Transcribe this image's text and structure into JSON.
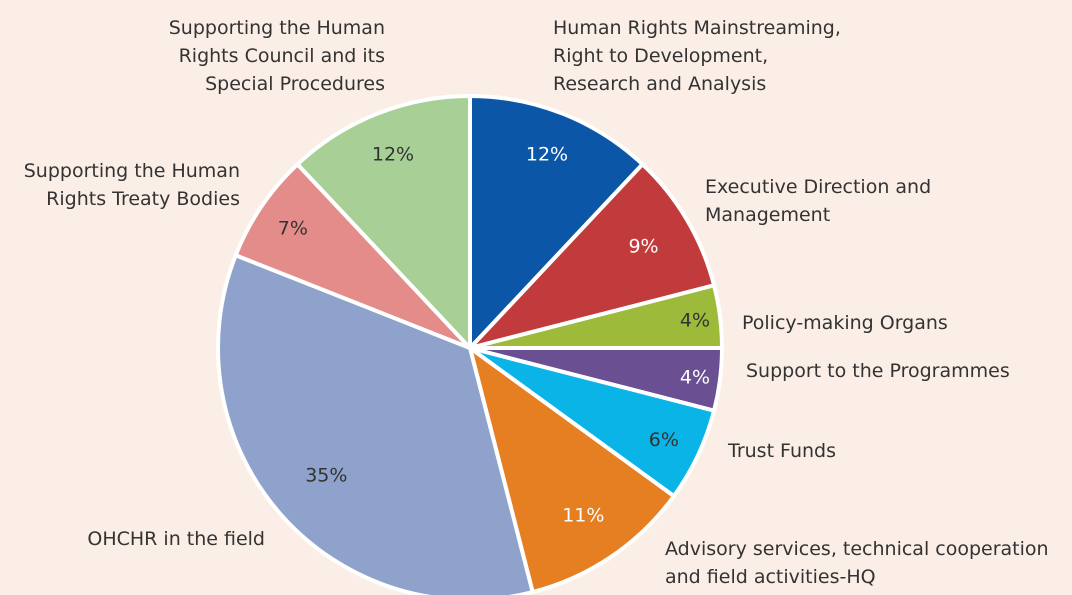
{
  "chart_data": {
    "type": "pie",
    "categories": [
      "Human Rights Mainstreaming,\nRight to Development,\nResearch and Analysis",
      "Executive Direction and\nManagement",
      "Policy-making Organs",
      "Support to the Programmes",
      "Trust Funds",
      "Advisory services, technical cooperation\nand field activities-HQ",
      "OHCHR in the field",
      "Supporting the Human\nRights Treaty Bodies",
      "Supporting the Human\nRights Council and its\nSpecial Procedures"
    ],
    "values": [
      12,
      9,
      4,
      4,
      6,
      11,
      35,
      7,
      12
    ],
    "value_labels": [
      "12%",
      "9%",
      "4%",
      "4%",
      "6%",
      "11%",
      "35%",
      "7%",
      "12%"
    ],
    "colors": [
      "#0b56a6",
      "#c23b3c",
      "#9dba3b",
      "#6b4f93",
      "#0ab4e6",
      "#e67e22",
      "#8fa2cb",
      "#e38c8a",
      "#a8cf95"
    ]
  }
}
